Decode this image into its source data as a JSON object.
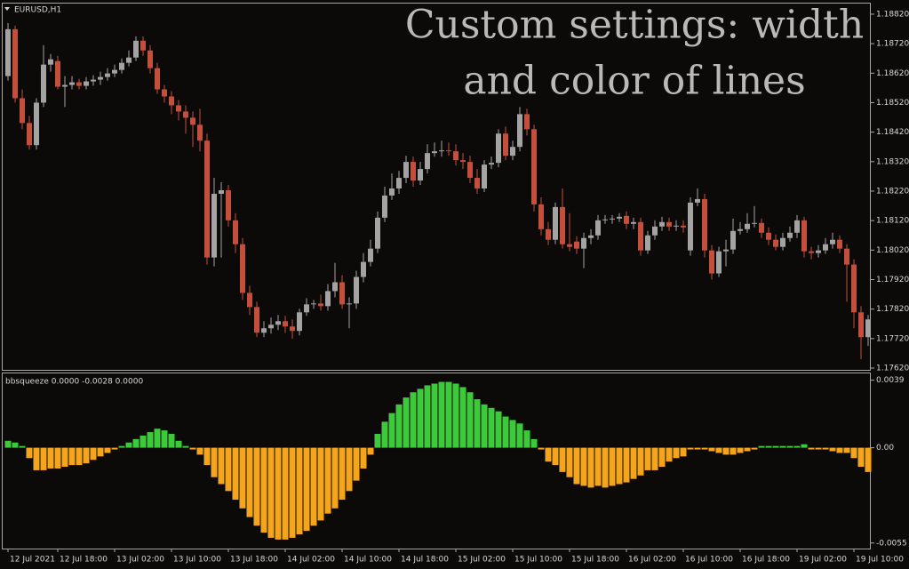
{
  "chart_data": [
    {
      "type": "candlestick",
      "title": "EURUSD,H1",
      "annotation": [
        "Custom settings: width",
        "and color of lines"
      ],
      "up_color": "#a3a3a3",
      "down_color": "#c4503c",
      "background": "#0c0a08",
      "categories": [
        "12 Jul 2021",
        null,
        null,
        null,
        null,
        null,
        null,
        "12 Jul 18:00",
        null,
        null,
        null,
        null,
        null,
        null,
        null,
        "13 Jul 02:00",
        null,
        null,
        null,
        null,
        null,
        null,
        null,
        "13 Jul 10:00",
        null,
        null,
        null,
        null,
        null,
        null,
        null,
        "13 Jul 18:00",
        null,
        null,
        null,
        null,
        null,
        null,
        null,
        "14 Jul 02:00",
        null,
        null,
        null,
        null,
        null,
        null,
        null,
        "14 Jul 10:00",
        null,
        null,
        null,
        null,
        null,
        null,
        null,
        "14 Jul 18:00",
        null,
        null,
        null,
        null,
        null,
        null,
        null,
        "15 Jul 02:00",
        null,
        null,
        null,
        null,
        null,
        null,
        null,
        "15 Jul 10:00",
        null,
        null,
        null,
        null,
        null,
        null,
        null,
        "15 Jul 18:00",
        null,
        null,
        null,
        null,
        null,
        null,
        null,
        "16 Jul 02:00",
        null,
        null,
        null,
        null,
        null,
        null,
        null,
        "16 Jul 10:00",
        null,
        null,
        null,
        null,
        null,
        null,
        null,
        "16 Jul 18:00",
        null,
        null,
        null,
        null,
        null,
        null,
        null,
        "19 Jul 02:00",
        null,
        null,
        null,
        null,
        null,
        null,
        null,
        "19 Jul 10:00",
        null,
        null
      ],
      "open": [
        1.1861,
        1.18769,
        1.18535,
        1.18451,
        1.18376,
        1.1852,
        1.18649,
        1.18661,
        1.18574,
        1.1858,
        1.18589,
        1.18577,
        1.18592,
        1.18598,
        1.18607,
        1.18619,
        1.18631,
        1.18655,
        1.18673,
        1.1873,
        1.18697,
        1.18637,
        1.18565,
        1.18541,
        1.18511,
        1.1849,
        1.18469,
        1.18445,
        1.18391,
        1.17995,
        1.18211,
        1.18223,
        1.18121,
        1.1804,
        1.17875,
        1.17827,
        1.1774,
        1.17755,
        1.17767,
        1.17779,
        1.17761,
        1.17746,
        1.17809,
        1.17836,
        1.17839,
        1.1783,
        1.17881,
        1.17911,
        1.17836,
        1.17839,
        1.17929,
        1.1798,
        1.18025,
        1.1813,
        1.18205,
        1.18229,
        1.18265,
        1.18319,
        1.18256,
        1.18295,
        1.18349,
        1.18355,
        1.18358,
        1.18355,
        1.18325,
        1.18319,
        1.18265,
        1.18229,
        1.1831,
        1.18316,
        1.18415,
        1.1834,
        1.1837,
        1.18481,
        1.1843,
        1.18175,
        1.18091,
        1.18055,
        1.18166,
        1.1804,
        1.18049,
        1.18025,
        1.18061,
        1.1807,
        1.18121,
        1.18124,
        1.18127,
        1.18136,
        1.18109,
        1.18115,
        1.18019,
        1.1807,
        1.181,
        1.18115,
        1.181,
        1.18103,
        1.18019,
        1.18181,
        1.18193,
        1.18019,
        1.17941,
        1.18016,
        1.18022,
        1.18085,
        1.18091,
        1.18109,
        1.18112,
        1.18079,
        1.18055,
        1.18031,
        1.18061,
        1.18079,
        1.18121,
        1.18016,
        1.1801,
        1.18019,
        1.1804,
        1.18055,
        1.18025,
        1.17971,
        1.17809,
        1.17725
      ],
      "high": [
        1.1879,
        1.18781,
        1.18565,
        1.18475,
        1.18535,
        1.18715,
        1.18685,
        1.18679,
        1.1861,
        1.1861,
        1.18601,
        1.18607,
        1.18613,
        1.18625,
        1.18637,
        1.18649,
        1.1867,
        1.18697,
        1.18745,
        1.18745,
        1.18715,
        1.18655,
        1.1858,
        1.18559,
        1.18529,
        1.18511,
        1.1849,
        1.18499,
        1.18415,
        1.18265,
        1.1825,
        1.18241,
        1.18145,
        1.18061,
        1.17899,
        1.17845,
        1.17779,
        1.17791,
        1.178,
        1.17797,
        1.17785,
        1.17821,
        1.17857,
        1.17851,
        1.17869,
        1.17905,
        1.17977,
        1.17935,
        1.1786,
        1.1795,
        1.1801,
        1.18055,
        1.18151,
        1.18235,
        1.1828,
        1.18289,
        1.1834,
        1.18337,
        1.18319,
        1.18379,
        1.18385,
        1.18391,
        1.18385,
        1.18379,
        1.18349,
        1.1834,
        1.18295,
        1.18325,
        1.18337,
        1.1843,
        1.18439,
        1.18391,
        1.18505,
        1.18499,
        1.18445,
        1.18199,
        1.18115,
        1.18181,
        1.18229,
        1.18145,
        1.18067,
        1.18079,
        1.18091,
        1.18139,
        1.18139,
        1.18139,
        1.18145,
        1.18151,
        1.1813,
        1.1813,
        1.18085,
        1.18121,
        1.18133,
        1.1813,
        1.18121,
        1.18121,
        1.18199,
        1.18229,
        1.18211,
        1.18037,
        1.18031,
        1.18055,
        1.18127,
        1.18115,
        1.18145,
        1.18169,
        1.18127,
        1.18097,
        1.18073,
        1.18079,
        1.181,
        1.18139,
        1.18133,
        1.18031,
        1.18037,
        1.18061,
        1.18079,
        1.1807,
        1.1804,
        1.17989,
        1.1783,
        1.178
      ],
      "low": [
        1.18595,
        1.1852,
        1.1843,
        1.18361,
        1.18361,
        1.18505,
        1.18625,
        1.18565,
        1.18505,
        1.18565,
        1.18565,
        1.18565,
        1.18577,
        1.1858,
        1.18595,
        1.18607,
        1.18619,
        1.18643,
        1.18661,
        1.18679,
        1.18619,
        1.1855,
        1.1852,
        1.18481,
        1.1846,
        1.18415,
        1.1837,
        1.18355,
        1.17971,
        1.17965,
        1.17995,
        1.181,
        1.1801,
        1.17851,
        1.178,
        1.17725,
        1.17725,
        1.17737,
        1.17749,
        1.1774,
        1.17719,
        1.17731,
        1.17797,
        1.17821,
        1.17815,
        1.17815,
        1.1786,
        1.17821,
        1.17755,
        1.17821,
        1.17911,
        1.17965,
        1.1801,
        1.18115,
        1.1819,
        1.18211,
        1.18247,
        1.18235,
        1.18241,
        1.1828,
        1.18337,
        1.18337,
        1.1834,
        1.18307,
        1.18295,
        1.18247,
        1.18211,
        1.18217,
        1.18295,
        1.18301,
        1.18325,
        1.18325,
        1.18355,
        1.18409,
        1.18151,
        1.1807,
        1.18037,
        1.1804,
        1.18025,
        1.18016,
        1.18007,
        1.17959,
        1.1804,
        1.18055,
        1.18109,
        1.18109,
        1.18115,
        1.18091,
        1.18091,
        1.18001,
        1.18007,
        1.18055,
        1.18085,
        1.18085,
        1.18085,
        1.18079,
        1.18001,
        1.18169,
        1.17995,
        1.1792,
        1.17929,
        1.17965,
        1.18007,
        1.18073,
        1.18079,
        1.18097,
        1.18061,
        1.18037,
        1.18019,
        1.18019,
        1.18049,
        1.18061,
        1.17995,
        1.17989,
        1.17995,
        1.18007,
        1.18025,
        1.1801,
        1.17845,
        1.17755,
        1.1765,
        1.17695
      ],
      "close": [
        1.18769,
        1.18535,
        1.18451,
        1.18376,
        1.1852,
        1.18649,
        1.18667,
        1.18574,
        1.1858,
        1.18589,
        1.18577,
        1.18592,
        1.18598,
        1.18607,
        1.18619,
        1.18631,
        1.18655,
        1.18673,
        1.1873,
        1.18697,
        1.18637,
        1.18565,
        1.18541,
        1.18511,
        1.1849,
        1.18469,
        1.18445,
        1.18391,
        1.17995,
        1.18211,
        1.18223,
        1.18121,
        1.1804,
        1.17875,
        1.17827,
        1.1774,
        1.17755,
        1.17767,
        1.17779,
        1.17761,
        1.17746,
        1.17809,
        1.17836,
        1.17839,
        1.1783,
        1.17881,
        1.17911,
        1.17836,
        1.17839,
        1.17929,
        1.1798,
        1.18025,
        1.1813,
        1.18205,
        1.18229,
        1.18265,
        1.18319,
        1.18256,
        1.18295,
        1.18349,
        1.18355,
        1.18358,
        1.18355,
        1.18325,
        1.18319,
        1.18265,
        1.18229,
        1.1831,
        1.18316,
        1.18415,
        1.1834,
        1.1837,
        1.18481,
        1.1843,
        1.18175,
        1.18091,
        1.18055,
        1.18166,
        1.1804,
        1.18031,
        1.18025,
        1.18061,
        1.1807,
        1.18121,
        1.18124,
        1.18127,
        1.18133,
        1.18109,
        1.18115,
        1.18019,
        1.1807,
        1.181,
        1.18115,
        1.181,
        1.18103,
        1.18097,
        1.18181,
        1.18193,
        1.18019,
        1.17941,
        1.18016,
        1.18022,
        1.18085,
        1.18091,
        1.18109,
        1.18112,
        1.18079,
        1.18055,
        1.18031,
        1.18061,
        1.18079,
        1.18121,
        1.18016,
        1.1801,
        1.18019,
        1.1804,
        1.18055,
        1.18025,
        1.17971,
        1.17809,
        1.17725,
        1.17785
      ],
      "ylim": [
        1.17614,
        1.18856
      ],
      "yticks": [
        {
          "value": 1.1882,
          "label": "1.18820"
        },
        {
          "value": 1.1872,
          "label": "1.18720"
        },
        {
          "value": 1.1862,
          "label": "1.18620"
        },
        {
          "value": 1.1852,
          "label": "1.18520"
        },
        {
          "value": 1.1842,
          "label": "1.18420"
        },
        {
          "value": 1.1832,
          "label": "1.18320"
        },
        {
          "value": 1.1822,
          "label": "1.18220"
        },
        {
          "value": 1.1812,
          "label": "1.18120"
        },
        {
          "value": 1.1802,
          "label": "1.18020"
        },
        {
          "value": 1.1792,
          "label": "1.17920"
        },
        {
          "value": 1.1782,
          "label": "1.17820"
        },
        {
          "value": 1.1772,
          "label": "1.17720"
        },
        {
          "value": 1.1762,
          "label": "1.17620"
        }
      ]
    },
    {
      "type": "histogram_bars",
      "title": "bbsqueeze 0.0000 -0.0028 0.0000",
      "color_positive": "#3ec83c",
      "color_negative": "#f5a41e",
      "values": [
        0.0004,
        0.0003,
        0.0001,
        -0.0006,
        -0.0013,
        -0.0013,
        -0.0012,
        -0.0012,
        -0.0011,
        -0.001,
        -0.001,
        -0.0009,
        -0.0007,
        -0.0005,
        -0.0003,
        -0.0001,
        0.0001,
        0.0003,
        0.0005,
        0.0007,
        0.0009,
        0.0011,
        0.001,
        0.0008,
        0.0004,
        0.0001,
        -0.0001,
        -0.0004,
        -0.001,
        -0.0017,
        -0.0021,
        -0.0025,
        -0.003,
        -0.0035,
        -0.004,
        -0.0045,
        -0.0049,
        -0.0052,
        -0.0053,
        -0.0053,
        -0.0052,
        -0.005,
        -0.0048,
        -0.0045,
        -0.0042,
        -0.0038,
        -0.0035,
        -0.003,
        -0.0025,
        -0.0019,
        -0.0012,
        -0.0004,
        0.0008,
        0.0015,
        0.002,
        0.0025,
        0.0029,
        0.0032,
        0.0034,
        0.0036,
        0.0037,
        0.0038,
        0.0038,
        0.0037,
        0.0035,
        0.0032,
        0.0028,
        0.0025,
        0.0023,
        0.0021,
        0.0018,
        0.0016,
        0.0014,
        0.001,
        0.0005,
        -0.0001,
        -0.0008,
        -0.001,
        -0.0014,
        -0.0017,
        -0.0021,
        -0.0022,
        -0.0023,
        -0.0022,
        -0.0023,
        -0.0022,
        -0.0021,
        -0.002,
        -0.0018,
        -0.0016,
        -0.0013,
        -0.0013,
        -0.0011,
        -0.0008,
        -0.0006,
        -0.0005,
        -0.0001,
        -0.0001,
        -0.0001,
        -0.0002,
        -0.0003,
        -0.0004,
        -0.0004,
        -0.0003,
        -0.0002,
        -0.0001,
        0.0001,
        0.0001,
        0.0001,
        0.0001,
        0.0001,
        0.0001,
        0.0002,
        -0.0001,
        -0.0001,
        -0.0001,
        -0.0002,
        -0.0003,
        -0.0003,
        -0.0006,
        -0.0011,
        -0.0014
      ],
      "ylim": [
        -0.00582,
        0.00429
      ],
      "yticks": [
        0.0039,
        {
          "value": 0,
          "label": "0.00"
        },
        -0.0055
      ]
    }
  ]
}
